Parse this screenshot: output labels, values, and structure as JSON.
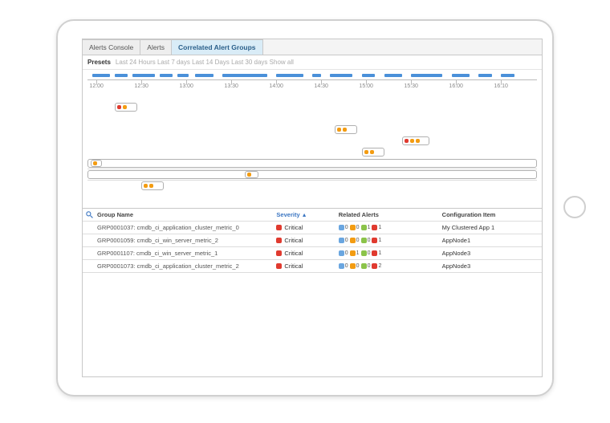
{
  "colors": {
    "accent": "#4a90d9",
    "tab_active_bg": "#d9ecf7",
    "critical": "#e03a2f",
    "warn": "#f39c12",
    "orange": "#e66b28",
    "green": "#8bc34a",
    "border": "#c8c8c8"
  },
  "tabs": [
    {
      "label": "Alerts Console",
      "active": false
    },
    {
      "label": "Alerts",
      "active": false
    },
    {
      "label": "Correlated Alert Groups",
      "active": true
    }
  ],
  "presets": {
    "label": "Presets",
    "options": [
      "Last 24 Hours",
      "Last 7 days",
      "Last 14 Days",
      "Last 30 days",
      "Show all"
    ]
  },
  "timeline": {
    "ticks": [
      "12:00",
      "12:30",
      "13:00",
      "13:30",
      "14:00",
      "14:30",
      "15:00",
      "15:30",
      "16:00",
      "16:10"
    ],
    "tick_pos_pct": [
      2,
      12,
      22,
      32,
      42,
      52,
      62,
      72,
      82,
      92
    ],
    "density_segments": [
      {
        "left_pct": 1,
        "width_pct": 4
      },
      {
        "left_pct": 6,
        "width_pct": 3
      },
      {
        "left_pct": 10,
        "width_pct": 5
      },
      {
        "left_pct": 16,
        "width_pct": 3
      },
      {
        "left_pct": 20,
        "width_pct": 2.5
      },
      {
        "left_pct": 24,
        "width_pct": 4
      },
      {
        "left_pct": 30,
        "width_pct": 10
      },
      {
        "left_pct": 42,
        "width_pct": 6
      },
      {
        "left_pct": 50,
        "width_pct": 2
      },
      {
        "left_pct": 54,
        "width_pct": 5
      },
      {
        "left_pct": 61,
        "width_pct": 3
      },
      {
        "left_pct": 66,
        "width_pct": 4
      },
      {
        "left_pct": 72,
        "width_pct": 7
      },
      {
        "left_pct": 81,
        "width_pct": 4
      },
      {
        "left_pct": 87,
        "width_pct": 3
      },
      {
        "left_pct": 92,
        "width_pct": 3
      }
    ]
  },
  "swimlanes": [
    {
      "bordered": false,
      "boxes": [
        {
          "left_pct": 6,
          "width_pct": 5,
          "dots": [
            "r",
            "o"
          ]
        }
      ]
    },
    {
      "bordered": false,
      "boxes": []
    },
    {
      "bordered": false,
      "boxes": [
        {
          "left_pct": 55,
          "width_pct": 5,
          "dots": [
            "o",
            "o"
          ]
        }
      ]
    },
    {
      "bordered": false,
      "boxes": [
        {
          "left_pct": 70,
          "width_pct": 6,
          "dots": [
            "r",
            "o",
            "o"
          ]
        }
      ]
    },
    {
      "bordered": false,
      "boxes": [
        {
          "left_pct": 61,
          "width_pct": 5,
          "dots": [
            "o",
            "o"
          ]
        }
      ]
    },
    {
      "bordered": true,
      "boxes": [
        {
          "full": true,
          "inner": {
            "left_pct": 0.5,
            "width_pct": 2.5,
            "dots": [
              "o"
            ]
          }
        }
      ]
    },
    {
      "bordered": true,
      "boxes": [
        {
          "full": true,
          "inner": {
            "left_pct": 35,
            "width_pct": 3,
            "dots": [
              "o"
            ]
          }
        }
      ]
    },
    {
      "bordered": false,
      "boxes": [
        {
          "left_pct": 12,
          "width_pct": 5,
          "dots": [
            "o",
            "o"
          ]
        }
      ]
    }
  ],
  "table": {
    "columns": {
      "group": "Group Name",
      "severity": "Severity",
      "related": "Related Alerts",
      "ci": "Configuration Item"
    },
    "sort_col": "severity",
    "rows": [
      {
        "group": "GRP0001037: cmdb_ci_application_cluster_metric_0",
        "severity": {
          "label": "Critical",
          "color": "#e03a2f"
        },
        "related": [
          {
            "n": 0,
            "c": "#6aa6e0"
          },
          {
            "n": 0,
            "c": "#f39c12"
          },
          {
            "n": 1,
            "c": "#8bc34a"
          },
          {
            "n": 1,
            "c": "#e03a2f"
          }
        ],
        "ci": "My Clustered App 1"
      },
      {
        "group": "GRP0001059: cmdb_ci_win_server_metric_2",
        "severity": {
          "label": "Critical",
          "color": "#e03a2f"
        },
        "related": [
          {
            "n": 0,
            "c": "#6aa6e0"
          },
          {
            "n": 0,
            "c": "#f39c12"
          },
          {
            "n": 0,
            "c": "#8bc34a"
          },
          {
            "n": 1,
            "c": "#e03a2f"
          }
        ],
        "ci": "AppNode1"
      },
      {
        "group": "GRP0001107: cmdb_ci_win_server_metric_1",
        "severity": {
          "label": "Critical",
          "color": "#e03a2f"
        },
        "related": [
          {
            "n": 0,
            "c": "#6aa6e0"
          },
          {
            "n": 1,
            "c": "#f39c12"
          },
          {
            "n": 0,
            "c": "#8bc34a"
          },
          {
            "n": 1,
            "c": "#e03a2f"
          }
        ],
        "ci": "AppNode3"
      },
      {
        "group": "GRP0001073: cmdb_ci_application_cluster_metric_2",
        "severity": {
          "label": "Critical",
          "color": "#e03a2f"
        },
        "related": [
          {
            "n": 0,
            "c": "#6aa6e0"
          },
          {
            "n": 0,
            "c": "#f39c12"
          },
          {
            "n": 0,
            "c": "#8bc34a"
          },
          {
            "n": 2,
            "c": "#e03a2f"
          }
        ],
        "ci": "AppNode3"
      }
    ]
  }
}
